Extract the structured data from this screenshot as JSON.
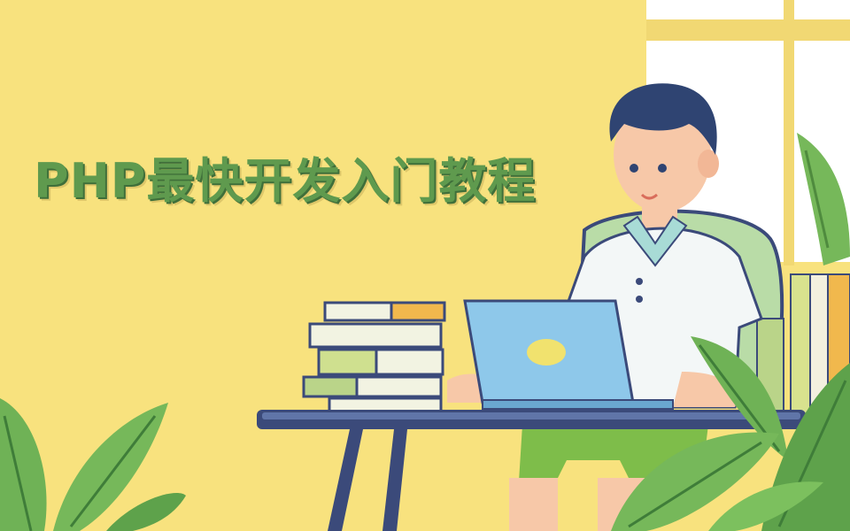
{
  "banner": {
    "title": "PHP最快开发入门教程"
  },
  "palette": {
    "background": "#f8e27e",
    "title_green": "#5f9a4e",
    "window_white": "#ffffff",
    "leaf_green": "#6fb256",
    "laptop_blue": "#8ec8ea",
    "shorts_green": "#7ebd4a",
    "table_navy": "#3b4a7a"
  },
  "illustration": {
    "subject": "boy-at-laptop",
    "icons": [
      "window-icon",
      "plant-icon",
      "book-stack-icon",
      "laptop-icon",
      "chair-icon",
      "table-icon"
    ]
  }
}
